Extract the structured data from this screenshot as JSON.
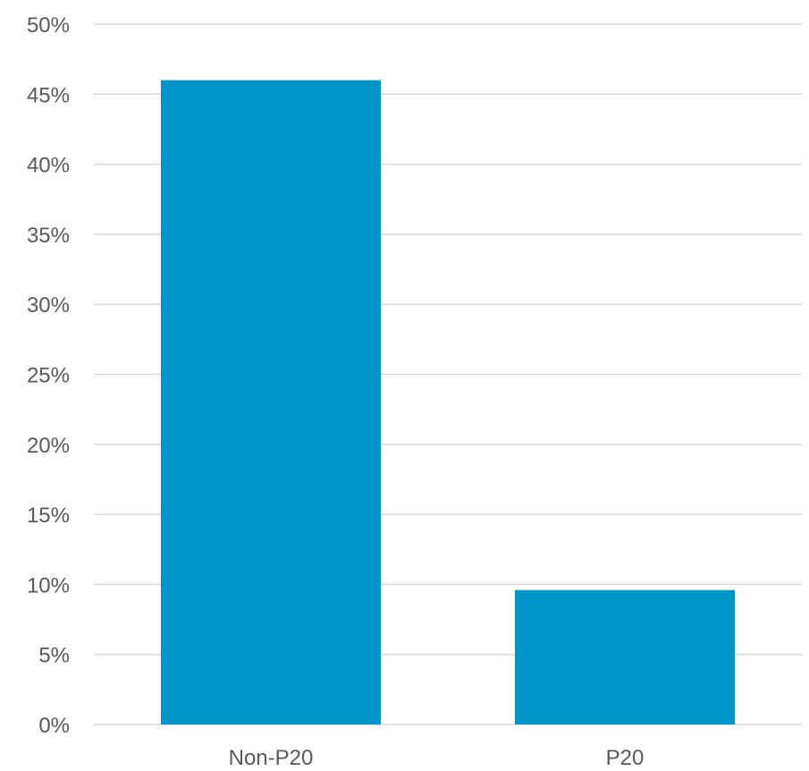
{
  "chart_data": {
    "type": "bar",
    "categories": [
      "Non-P20",
      "P20"
    ],
    "values": [
      46,
      9.6
    ],
    "title": "",
    "xlabel": "",
    "ylabel": "",
    "ylim": [
      0,
      50
    ],
    "y_ticks": [
      "0%",
      "5%",
      "10%",
      "15%",
      "20%",
      "25%",
      "30%",
      "35%",
      "40%",
      "45%",
      "50%"
    ],
    "grid": true,
    "legend": "none",
    "bar_color": "#0095c8",
    "grid_color": "#d9d9d9",
    "label_color": "#595959"
  }
}
